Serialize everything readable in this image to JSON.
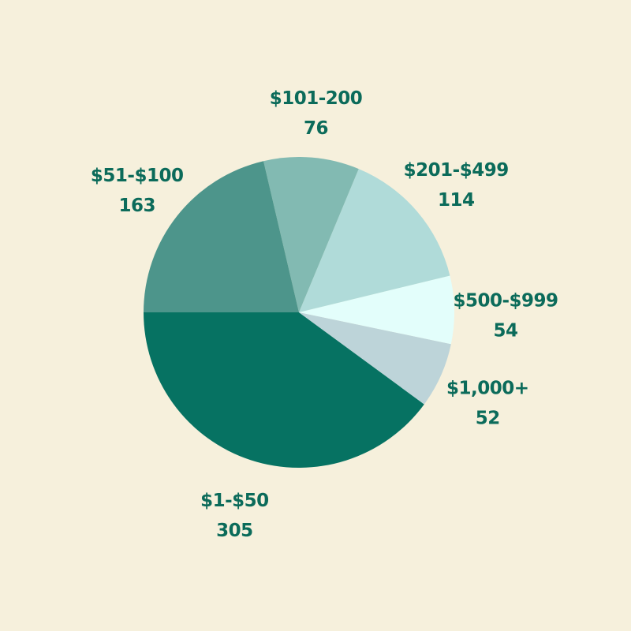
{
  "colors": {
    "background": "#f6f0dc",
    "label": "#0b6b5a"
  },
  "chart_data": {
    "type": "pie",
    "start_angle_deg": 180,
    "direction": "counterclockwise",
    "slices": [
      {
        "label": "$1-$50",
        "value": 305,
        "value_text": "305",
        "color": "#067262"
      },
      {
        "label": "$1,000+",
        "value": 52,
        "value_text": "52",
        "color": "#bdd4d9"
      },
      {
        "label": "$500-$999",
        "value": 54,
        "value_text": "54",
        "color": "#e3fefb"
      },
      {
        "label": "$201-$499",
        "value": 114,
        "value_text": "114",
        "color": "#b0dbd9"
      },
      {
        "label": "$101-200",
        "value": 76,
        "value_text": "76",
        "color": "#82bab2"
      },
      {
        "label": "$51-$100",
        "value": 163,
        "value_text": "163",
        "color": "#4d958b"
      }
    ]
  }
}
